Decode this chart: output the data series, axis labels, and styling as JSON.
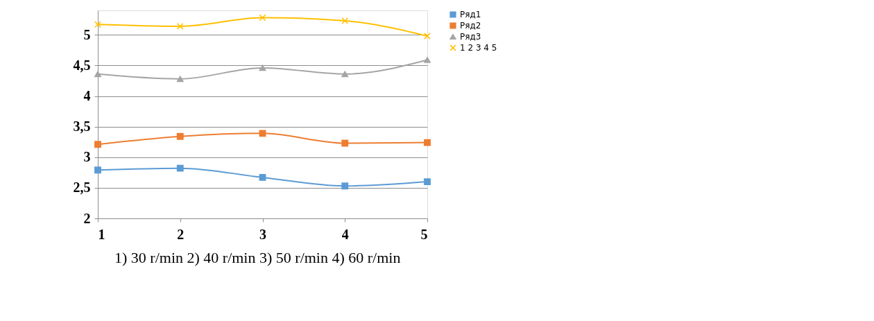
{
  "chart_data": {
    "type": "line",
    "x": [
      1,
      2,
      3,
      4,
      5
    ],
    "xlim": [
      1,
      5
    ],
    "xticks": [
      1,
      2,
      3,
      4,
      5
    ],
    "ylim": [
      2,
      5.4
    ],
    "yticks": [
      2,
      {
        "value": 2.5,
        "label": "2,5"
      },
      3,
      {
        "value": 3.5,
        "label": "3,5"
      },
      4,
      {
        "value": 4.5,
        "label": "4,5"
      },
      5
    ],
    "grid": "y",
    "legend": "right",
    "line_style": "solid",
    "series": [
      {
        "name": "Ряд1",
        "color": "#5b9bd5",
        "marker": "square",
        "values": [
          2.79,
          2.82,
          2.67,
          2.53,
          2.6
        ]
      },
      {
        "name": "Ряд2",
        "color": "#ed7d31",
        "marker": "square",
        "values": [
          3.21,
          3.34,
          3.39,
          3.23,
          3.24
        ]
      },
      {
        "name": "Ряд3",
        "color": "#a5a5a5",
        "marker": "triangle",
        "values": [
          4.36,
          4.28,
          4.46,
          4.36,
          4.59
        ]
      },
      {
        "name": "1 2 3 4 5",
        "color": "#ffc000",
        "marker": "cross",
        "values": [
          5.17,
          5.14,
          5.28,
          5.23,
          4.98
        ]
      }
    ],
    "annotations": [
      "1)  30 r/min                2) 40 r/min                3)  50 r/min                4) 60 r/min"
    ]
  }
}
